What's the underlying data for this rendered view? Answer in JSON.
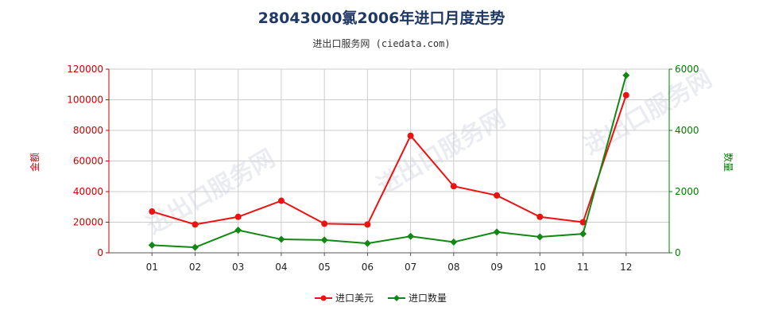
{
  "chart_data": {
    "type": "line",
    "title": "28043000氯2006年进口月度走势",
    "subtitle": "进出口服务网 (ciedata.com)",
    "categories": [
      "01",
      "02",
      "03",
      "04",
      "05",
      "06",
      "07",
      "08",
      "09",
      "10",
      "11",
      "12"
    ],
    "ylabel": "金额",
    "y2label": "数量",
    "ylim": [
      0,
      120000
    ],
    "y2lim": [
      0,
      6000
    ],
    "yticks": [
      "0",
      "20000",
      "40000",
      "60000",
      "80000",
      "100000",
      "120000"
    ],
    "y2ticks": [
      "0",
      "2000",
      "4000",
      "6000"
    ],
    "grid": true,
    "legend_position": "bottom",
    "series": [
      {
        "name": "进口美元",
        "axis": "left",
        "color": "#ee1111",
        "values": [
          27000,
          18500,
          23500,
          34000,
          19000,
          18500,
          76500,
          43500,
          37500,
          23500,
          20000,
          103000
        ]
      },
      {
        "name": "进口数量",
        "axis": "right",
        "color": "#118811",
        "values": [
          250,
          180,
          740,
          440,
          420,
          310,
          540,
          350,
          680,
          520,
          620,
          5800
        ]
      }
    ]
  },
  "watermark": "进出口服务网"
}
